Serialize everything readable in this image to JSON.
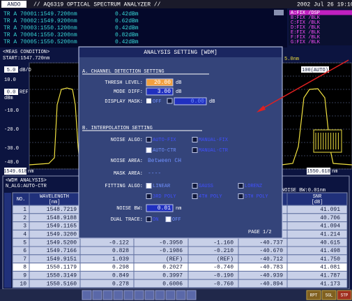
{
  "header": {
    "logo": "ANDO",
    "title": "// AQ6319 OPTICAL SPECTRUM ANALYZER //",
    "datetime": "2002 Jul 26 19:10"
  },
  "markers": [
    {
      "label": "TR A 70001:1549.7200nm",
      "value": "0.42dBm"
    },
    {
      "label": "TR A 70002:1549.9200nm",
      "value": "0.62dBm"
    },
    {
      "label": "TR A 70003:1550.1200nm",
      "value": "0.42dBm"
    },
    {
      "label": "TR A 70004:1550.3200nm",
      "value": "0.82dBm"
    },
    {
      "label": "TR A 70005:1550.5200nm",
      "value": "0.42dBm"
    }
  ],
  "traces": [
    "A:FIX /DSP",
    "B:FIX /BLK",
    "C:FIX /BLK",
    "D:FIX /BLK",
    "E:FIX /BLK",
    "F:FIX /BLK",
    "G:FIX /BLK"
  ],
  "meas_condition": {
    "title": "<MEAS CONDITION>",
    "start": "START:1547.720nm"
  },
  "graph": {
    "scale": "5.0",
    "scale_unit": "dB/D",
    "y_labels": [
      "10.0",
      "-10.0",
      "-20.0",
      "-30.0",
      "-40.0"
    ],
    "ref_value": "0.0",
    "ref": "REF",
    "unit": "dBm",
    "left_wl": "1549.618",
    "left_wl_unit": "nm",
    "span": "5.0nm",
    "res": "100(AUTO)",
    "right_wl": "1550.618",
    "right_wl_unit": "nm"
  },
  "dialog": {
    "title": "ANALYSIS SETTING [WDM]",
    "section_a": "A. CHANNEL DETECTION SETTING",
    "thresh_label": "THRESH LEVEL:",
    "thresh_value": "20.00",
    "thresh_unit": "dB",
    "mode_label": "MODE DIFF:",
    "mode_value": "3.00",
    "mode_unit": "dB",
    "mask_label": "DISPLAY MASK:",
    "mask_off": "OFF",
    "mask_value": "0.00",
    "mask_unit": "dB",
    "section_b": "B. INTERPOLATION SETTING",
    "noise_algo_label": "NOISE ALGO:",
    "noise_algo_options": [
      "AUTO-FIX",
      "MANUAL-FIX",
      "AUTO-CTR",
      "MANUAL-CTR"
    ],
    "noise_area_label": "NOISE AREA:",
    "noise_area_value": "Between CH",
    "mask_area_label": "MASK AREA:",
    "mask_area_value": "----",
    "fitting_label": "FITTING ALGO:",
    "fitting_options": [
      "LINEAR",
      "GAUSS",
      "LORENZ",
      "3RD POLY",
      "4TH POLY",
      "5TH POLY"
    ],
    "noise_bw_label": "NOISE BW:",
    "noise_bw_value": "0.01",
    "noise_bw_unit": "nm",
    "dual_label": "DUAL TRACE:",
    "dual_on": "ON",
    "dual_off": "OFF",
    "page": "PAGE 1/2"
  },
  "table": {
    "title": "<WDM ANALYSIS>",
    "algo": "N_ALG:AUTO-CTR",
    "noise_bw": "NOISE BW:0.01nm",
    "headers": {
      "no": "NO.",
      "wavelength": "WAVELENGTH",
      "wavelength_unit": "[nm]",
      "snr": "SNR",
      "snr_unit": "[dB]"
    },
    "rows": [
      {
        "no": "1",
        "wavelength": "1548.7219",
        "snr": "41.091"
      },
      {
        "no": "2",
        "wavelength": "1548.9188",
        "snr": "40.706"
      },
      {
        "no": "3",
        "wavelength": "1549.1165",
        "snr": "41.094"
      },
      {
        "no": "4",
        "wavelength": "1549.3200",
        "snr": "41.214"
      },
      {
        "no": "5",
        "wavelength": "1549.5200",
        "c1": "-0.122",
        "c2": "-0.3950",
        "c3": "-1.160",
        "c4": "-40.737",
        "snr": "40.615"
      },
      {
        "no": "6",
        "wavelength": "1549.7166",
        "c1": "0.828",
        "c2": "-0.1986",
        "c3": "-0.210",
        "c4": "-40.670",
        "snr": "41.498"
      },
      {
        "no": "7",
        "wavelength": "1549.9151",
        "c1": "1.039",
        "c2": "(REF)",
        "c3": "(REF)",
        "c4": "-40.712",
        "snr": "41.750"
      },
      {
        "no": "8",
        "wavelength": "1550.1179",
        "c1": "0.298",
        "c2": "0.2027",
        "c3": "-0.740",
        "c4": "-40.783",
        "snr": "41.081"
      },
      {
        "no": "9",
        "wavelength": "1550.3149",
        "c1": "0.849",
        "c2": "0.3997",
        "c3": "-0.190",
        "c4": "-40.939",
        "snr": "41.787"
      },
      {
        "no": "10",
        "wavelength": "1550.5160",
        "c1": "0.278",
        "c2": "0.6006",
        "c3": "-0.760",
        "c4": "-40.894",
        "snr": "41.173"
      }
    ]
  },
  "softkeys": [
    "RPT",
    "SGL",
    "STP"
  ]
}
